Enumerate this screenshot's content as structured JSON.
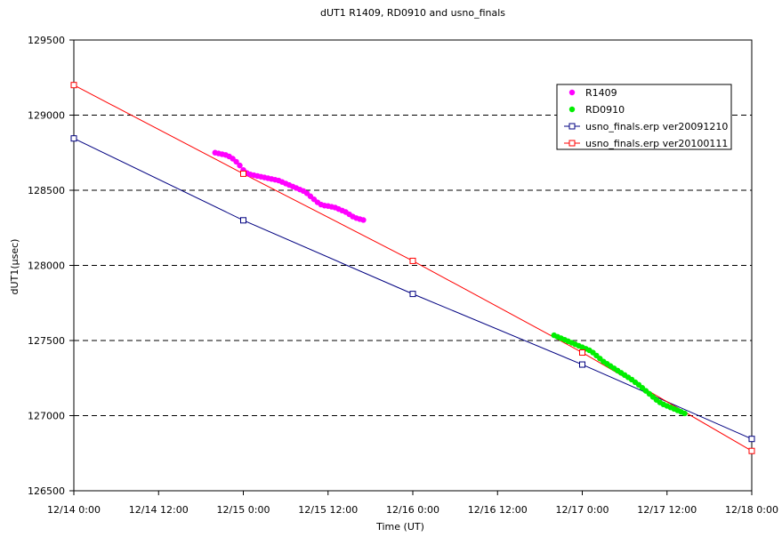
{
  "chart_data": {
    "type": "line",
    "title": "dUT1  R1409, RD0910 and usno_finals",
    "xlabel": "Time (UT)",
    "ylabel": "dUT1(μsec)",
    "xlim_hours": [
      0,
      96
    ],
    "ylim": [
      126500,
      129500
    ],
    "y_ticks": [
      126500,
      127000,
      127500,
      128000,
      128500,
      129000,
      129500
    ],
    "y_tick_labels": [
      "126500",
      "127000",
      "127500",
      "128000",
      "128500",
      "129000",
      "129500"
    ],
    "x_ticks_hours": [
      0,
      12,
      24,
      36,
      48,
      60,
      72,
      84,
      96
    ],
    "x_tick_labels": [
      "12/14 0:00",
      "12/14 12:00",
      "12/15 0:00",
      "12/15 12:00",
      "12/16 0:00",
      "12/16 12:00",
      "12/17 0:00",
      "12/17 12:00",
      "12/18 0:00"
    ],
    "grid": "horizontal dashed",
    "legend_position": "top-right",
    "series": [
      {
        "name": "R1409",
        "kind": "scatter",
        "color": "#ff00ff",
        "points": [
          [
            20.0,
            128750
          ],
          [
            20.5,
            128745
          ],
          [
            21.0,
            128740
          ],
          [
            21.5,
            128735
          ],
          [
            22.0,
            128725
          ],
          [
            22.5,
            128710
          ],
          [
            23.0,
            128690
          ],
          [
            23.5,
            128665
          ],
          [
            24.0,
            128635
          ],
          [
            24.5,
            128615
          ],
          [
            25.0,
            128605
          ],
          [
            25.5,
            128600
          ],
          [
            26.0,
            128595
          ],
          [
            26.5,
            128590
          ],
          [
            27.0,
            128585
          ],
          [
            27.5,
            128580
          ],
          [
            28.0,
            128575
          ],
          [
            28.5,
            128570
          ],
          [
            29.0,
            128565
          ],
          [
            29.5,
            128555
          ],
          [
            30.0,
            128545
          ],
          [
            30.5,
            128535
          ],
          [
            31.0,
            128525
          ],
          [
            31.5,
            128515
          ],
          [
            32.0,
            128505
          ],
          [
            32.5,
            128495
          ],
          [
            33.0,
            128480
          ],
          [
            33.5,
            128460
          ],
          [
            34.0,
            128440
          ],
          [
            34.5,
            128420
          ],
          [
            35.0,
            128405
          ],
          [
            35.5,
            128398
          ],
          [
            36.0,
            128395
          ],
          [
            36.5,
            128390
          ],
          [
            37.0,
            128385
          ],
          [
            37.5,
            128375
          ],
          [
            38.0,
            128365
          ],
          [
            38.5,
            128355
          ],
          [
            39.0,
            128340
          ],
          [
            39.5,
            128325
          ],
          [
            40.0,
            128315
          ],
          [
            40.5,
            128308
          ],
          [
            41.0,
            128302
          ]
        ]
      },
      {
        "name": "RD0910",
        "kind": "scatter",
        "color": "#00ee00",
        "points": [
          [
            68.0,
            127535
          ],
          [
            68.5,
            127525
          ],
          [
            69.0,
            127515
          ],
          [
            69.5,
            127505
          ],
          [
            70.0,
            127495
          ],
          [
            70.5,
            127485
          ],
          [
            71.0,
            127475
          ],
          [
            71.5,
            127465
          ],
          [
            72.0,
            127455
          ],
          [
            72.5,
            127445
          ],
          [
            73.0,
            127435
          ],
          [
            73.5,
            127420
          ],
          [
            74.0,
            127400
          ],
          [
            74.5,
            127380
          ],
          [
            75.0,
            127360
          ],
          [
            75.5,
            127345
          ],
          [
            76.0,
            127330
          ],
          [
            76.5,
            127315
          ],
          [
            77.0,
            127300
          ],
          [
            77.5,
            127285
          ],
          [
            78.0,
            127270
          ],
          [
            78.5,
            127255
          ],
          [
            79.0,
            127240
          ],
          [
            79.5,
            127222
          ],
          [
            80.0,
            127205
          ],
          [
            80.5,
            127185
          ],
          [
            81.0,
            127165
          ],
          [
            81.5,
            127145
          ],
          [
            82.0,
            127125
          ],
          [
            82.5,
            127105
          ],
          [
            83.0,
            127088
          ],
          [
            83.5,
            127075
          ],
          [
            84.0,
            127065
          ],
          [
            84.5,
            127055
          ],
          [
            85.0,
            127045
          ],
          [
            85.5,
            127035
          ],
          [
            86.0,
            127025
          ],
          [
            86.5,
            127015
          ]
        ]
      },
      {
        "name": "usno_finals.erp ver20091210",
        "kind": "line",
        "color": "#000080",
        "marker": "open-square",
        "points": [
          [
            0,
            128845
          ],
          [
            24,
            128300
          ],
          [
            48,
            127810
          ],
          [
            72,
            127340
          ],
          [
            96,
            126845
          ]
        ]
      },
      {
        "name": "usno_finals.erp ver20100111",
        "kind": "line",
        "color": "#ff0000",
        "marker": "open-square",
        "points": [
          [
            0,
            129200
          ],
          [
            24,
            128610
          ],
          [
            48,
            128030
          ],
          [
            72,
            127420
          ],
          [
            96,
            126765
          ]
        ]
      }
    ]
  }
}
